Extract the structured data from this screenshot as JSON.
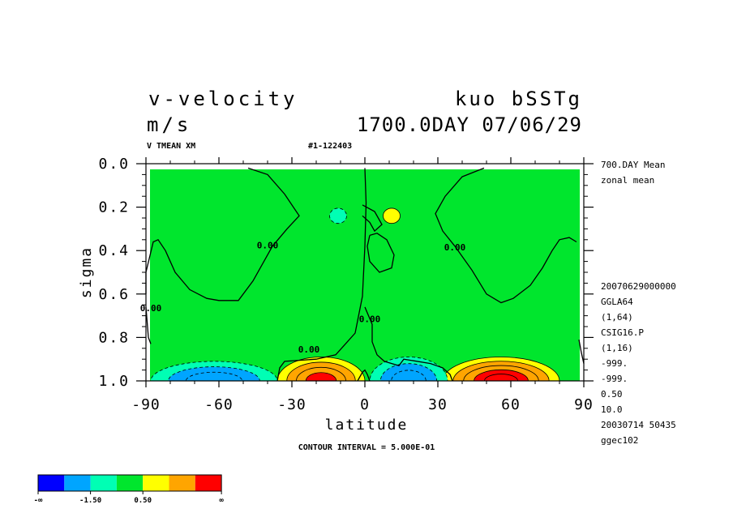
{
  "header": {
    "title_left": "v-velocity",
    "title_right": "kuo bSSTg",
    "units": "m/s",
    "datetime": "1700.0DAY 07/06/29",
    "var_label": "V TMEAN XM",
    "run_id": "#1-122403"
  },
  "side_labels": {
    "top": [
      "700.DAY Mean",
      "zonal mean"
    ],
    "bottom": [
      "20070629000000",
      "GGLA64",
      "(1,64)",
      "CSIG16.P",
      "(1,16)",
      "-999.",
      "-999.",
      "0.50",
      "10.0",
      "20030714  50435",
      "ggec102"
    ]
  },
  "footer": {
    "contour_interval": "CONTOUR INTERVAL = 5.000E-01"
  },
  "colorbar": {
    "colors": [
      "#0000ff",
      "#00a5ff",
      "#00ffb4",
      "#00e62d",
      "#ffff00",
      "#ffa500",
      "#ff0000"
    ],
    "labels": [
      "-∞",
      "-1.50",
      "0.50",
      "∞"
    ],
    "label_boundaries": [
      0,
      2,
      4,
      7
    ]
  },
  "chart_data": {
    "type": "contour",
    "xlabel": "latitude",
    "ylabel": "sigma",
    "xlim": [
      -90,
      90
    ],
    "ylim": [
      1.0,
      0.0
    ],
    "xticks": [
      "-90",
      "-60",
      "-30",
      "0",
      "30",
      "60",
      "90"
    ],
    "yticks": [
      "0.0",
      "0.2",
      "0.4",
      "0.6",
      "0.8",
      "1.0"
    ],
    "contour_labels": [
      {
        "text": "0.00",
        "lat": -40,
        "sigma": 0.39
      },
      {
        "text": "0.00",
        "lat": -88,
        "sigma": 0.68
      },
      {
        "text": "0.00",
        "lat": -23,
        "sigma": 0.87
      },
      {
        "text": "0.00",
        "lat": 2,
        "sigma": 0.73
      },
      {
        "text": "0.00",
        "lat": 37,
        "sigma": 0.4
      }
    ],
    "zero_contours": [
      [
        [
          -48,
          0.02
        ],
        [
          -40,
          0.05
        ],
        [
          -33,
          0.14
        ],
        [
          -27,
          0.24
        ],
        [
          -32,
          0.3
        ],
        [
          -38,
          0.38
        ],
        [
          -46,
          0.54
        ],
        [
          -52,
          0.63
        ],
        [
          -56,
          0.63
        ],
        [
          -60,
          0.63
        ],
        [
          -65,
          0.62
        ],
        [
          -72,
          0.58
        ],
        [
          -78,
          0.5
        ],
        [
          -82,
          0.4
        ],
        [
          -85,
          0.35
        ],
        [
          -87,
          0.36
        ],
        [
          -90,
          0.5
        ],
        [
          -90,
          0.6
        ]
      ],
      [
        [
          -90,
          0.66
        ],
        [
          -89,
          0.8
        ],
        [
          -88,
          0.83
        ]
      ],
      [
        [
          -36,
          1.0
        ],
        [
          -35,
          0.94
        ],
        [
          -33,
          0.91
        ],
        [
          -20,
          0.9
        ],
        [
          -12,
          0.88
        ],
        [
          -8,
          0.83
        ],
        [
          -4,
          0.78
        ],
        [
          -1,
          0.61
        ],
        [
          0,
          0.38
        ],
        [
          0.5,
          0.18
        ],
        [
          0,
          0.02
        ]
      ],
      [
        [
          -1,
          0.19
        ],
        [
          4,
          0.22
        ],
        [
          7,
          0.28
        ],
        [
          4,
          0.31
        ],
        [
          2,
          0.27
        ],
        [
          -1,
          0.24
        ]
      ],
      [
        [
          2,
          0.33
        ],
        [
          5,
          0.32
        ],
        [
          9,
          0.35
        ],
        [
          12,
          0.42
        ],
        [
          11,
          0.48
        ],
        [
          6,
          0.5
        ],
        [
          2,
          0.45
        ],
        [
          1,
          0.38
        ],
        [
          2,
          0.33
        ]
      ],
      [
        [
          0,
          0.66
        ],
        [
          3,
          0.74
        ],
        [
          3,
          0.82
        ],
        [
          5,
          0.88
        ],
        [
          8,
          0.91
        ],
        [
          14,
          0.93
        ],
        [
          16,
          0.9
        ],
        [
          27,
          0.92
        ],
        [
          32,
          0.94
        ],
        [
          35,
          0.97
        ],
        [
          36,
          1.0
        ]
      ],
      [
        [
          -3,
          1.0
        ],
        [
          -1,
          0.96
        ],
        [
          0,
          0.95
        ],
        [
          1,
          0.97
        ],
        [
          2,
          1.0
        ]
      ],
      [
        [
          49,
          0.02
        ],
        [
          40,
          0.06
        ],
        [
          33,
          0.15
        ],
        [
          29,
          0.23
        ],
        [
          32,
          0.31
        ],
        [
          37,
          0.38
        ],
        [
          44,
          0.49
        ],
        [
          50,
          0.6
        ],
        [
          56,
          0.64
        ],
        [
          61,
          0.62
        ],
        [
          68,
          0.56
        ],
        [
          73,
          0.48
        ],
        [
          77,
          0.4
        ],
        [
          80,
          0.35
        ],
        [
          84,
          0.34
        ],
        [
          87,
          0.36
        ]
      ],
      [
        [
          88,
          0.81
        ],
        [
          89,
          0.87
        ],
        [
          90,
          0.92
        ]
      ]
    ],
    "positive_cells": [
      {
        "lat": -18,
        "sigma": 1.0,
        "rx": 18,
        "ry": 0.11,
        "levels": 4
      },
      {
        "lat": 56,
        "sigma": 1.0,
        "rx": 24,
        "ry": 0.11,
        "levels": 5
      },
      {
        "lat": 11,
        "sigma": 0.24,
        "rx": 3.5,
        "ry": 0.035,
        "levels": 1
      }
    ],
    "negative_cells": [
      {
        "lat": -62,
        "sigma": 1.0,
        "rx": 26,
        "ry": 0.09,
        "levels": 3
      },
      {
        "lat": 18,
        "sigma": 1.0,
        "rx": 16,
        "ry": 0.11,
        "levels": 3
      },
      {
        "lat": -11,
        "sigma": 0.24,
        "rx": 3.5,
        "ry": 0.035,
        "levels": 1
      }
    ]
  }
}
